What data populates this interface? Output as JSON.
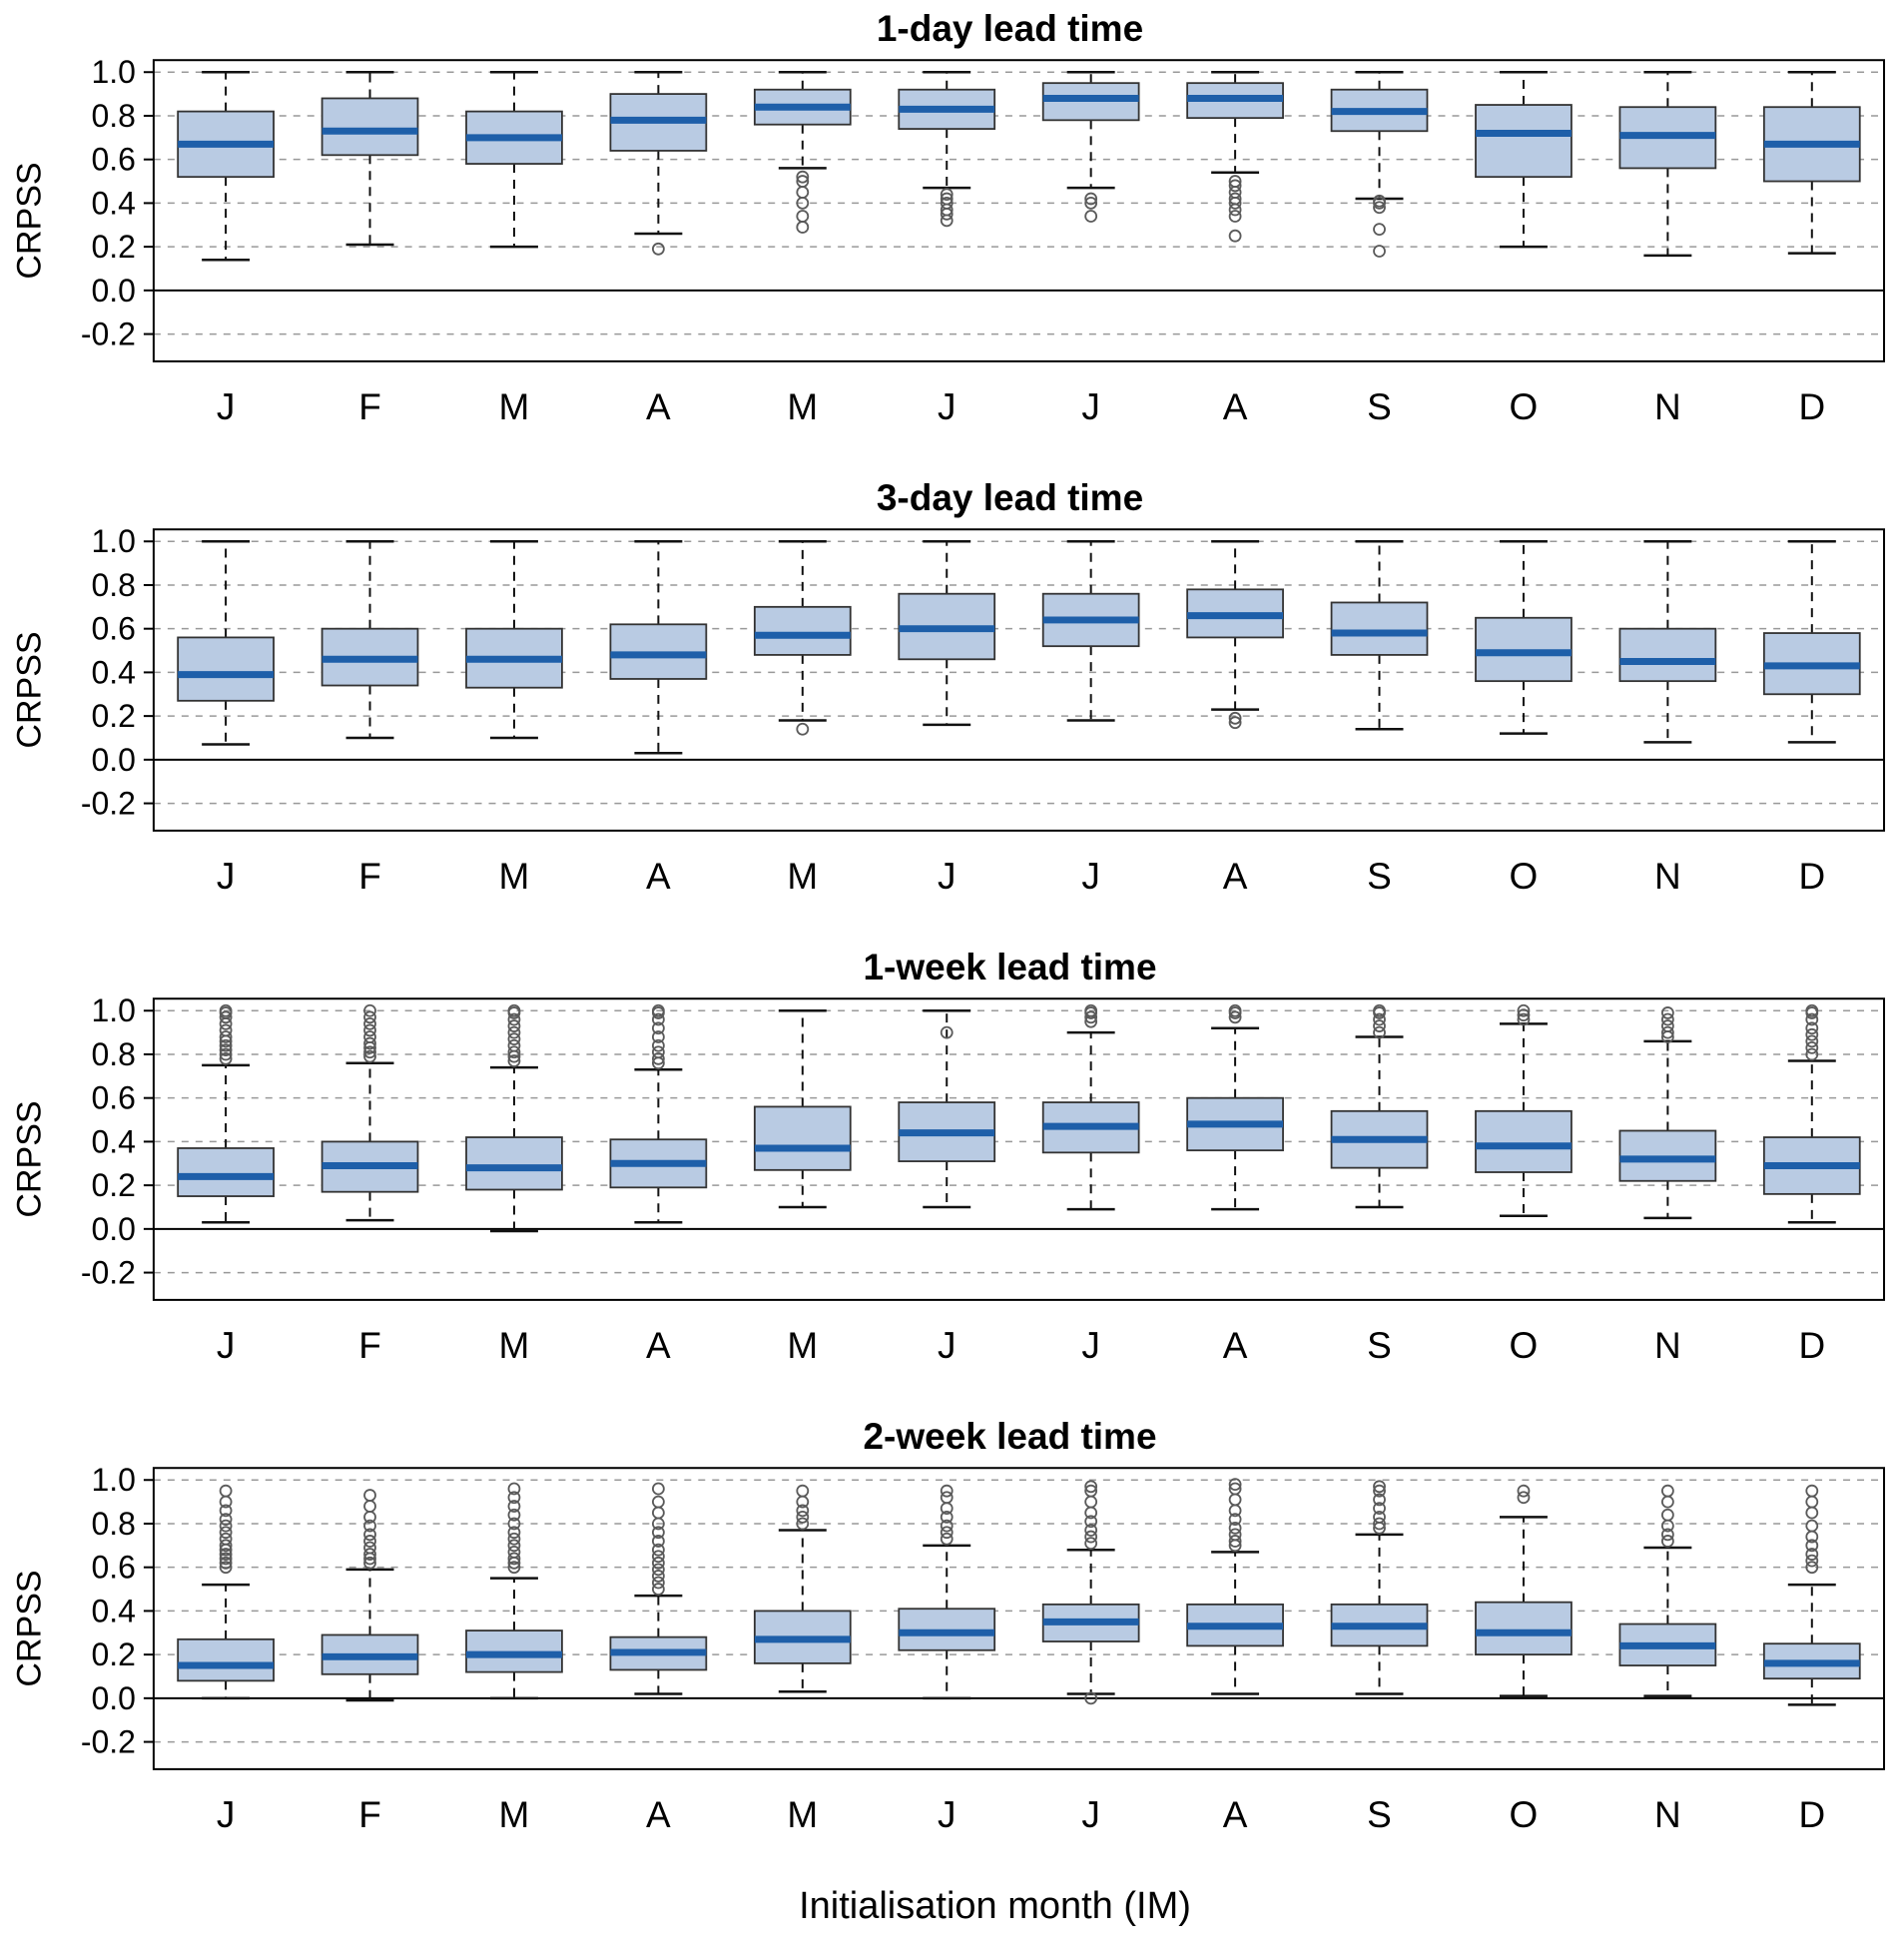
{
  "labels": {
    "x_axis": "Initialisation month (IM)"
  },
  "colors": {
    "box_fill": "#b9cbe3",
    "box_stroke": "#333333",
    "median": "#1e5fa9",
    "whisker": "#111111",
    "outlier": "#5a5a5a",
    "grid": "#999999",
    "zero_line": "#000000",
    "axis": "#000000"
  },
  "chart_data": [
    {
      "type": "boxplot",
      "title": "1-day lead time",
      "ylabel": "CRPSS",
      "ylim": [
        -0.325,
        1.055
      ],
      "yticks": [
        1.0,
        0.8,
        0.6,
        0.4,
        0.2,
        0.0,
        -0.2
      ],
      "grid": "dashed",
      "categories": [
        "J",
        "F",
        "M",
        "A",
        "M",
        "J",
        "J",
        "A",
        "S",
        "O",
        "N",
        "D"
      ],
      "boxes": [
        {
          "low": 0.14,
          "q1": 0.52,
          "median": 0.67,
          "q3": 0.82,
          "high": 1.0,
          "outliers": []
        },
        {
          "low": 0.21,
          "q1": 0.62,
          "median": 0.73,
          "q3": 0.88,
          "high": 1.0,
          "outliers": []
        },
        {
          "low": 0.2,
          "q1": 0.58,
          "median": 0.7,
          "q3": 0.82,
          "high": 1.0,
          "outliers": []
        },
        {
          "low": 0.26,
          "q1": 0.64,
          "median": 0.78,
          "q3": 0.9,
          "high": 1.0,
          "outliers": [
            0.19
          ]
        },
        {
          "low": 0.56,
          "q1": 0.76,
          "median": 0.84,
          "q3": 0.92,
          "high": 1.0,
          "outliers": [
            0.52,
            0.5,
            0.45,
            0.4,
            0.34,
            0.29
          ]
        },
        {
          "low": 0.47,
          "q1": 0.74,
          "median": 0.83,
          "q3": 0.92,
          "high": 1.0,
          "outliers": [
            0.44,
            0.42,
            0.4,
            0.37,
            0.35,
            0.32
          ]
        },
        {
          "low": 0.47,
          "q1": 0.78,
          "median": 0.88,
          "q3": 0.95,
          "high": 1.0,
          "outliers": [
            0.42,
            0.4,
            0.34
          ]
        },
        {
          "low": 0.54,
          "q1": 0.79,
          "median": 0.88,
          "q3": 0.95,
          "high": 1.0,
          "outliers": [
            0.5,
            0.48,
            0.45,
            0.42,
            0.4,
            0.37,
            0.34,
            0.25
          ]
        },
        {
          "low": 0.42,
          "q1": 0.73,
          "median": 0.82,
          "q3": 0.92,
          "high": 1.0,
          "outliers": [
            0.41,
            0.4,
            0.38,
            0.28,
            0.18
          ]
        },
        {
          "low": 0.2,
          "q1": 0.52,
          "median": 0.72,
          "q3": 0.85,
          "high": 1.0,
          "outliers": []
        },
        {
          "low": 0.16,
          "q1": 0.56,
          "median": 0.71,
          "q3": 0.84,
          "high": 1.0,
          "outliers": []
        },
        {
          "low": 0.17,
          "q1": 0.5,
          "median": 0.67,
          "q3": 0.84,
          "high": 1.0,
          "outliers": []
        }
      ]
    },
    {
      "type": "boxplot",
      "title": "3-day lead time",
      "ylabel": "CRPSS",
      "ylim": [
        -0.325,
        1.055
      ],
      "yticks": [
        1.0,
        0.8,
        0.6,
        0.4,
        0.2,
        0.0,
        -0.2
      ],
      "grid": "dashed",
      "categories": [
        "J",
        "F",
        "M",
        "A",
        "M",
        "J",
        "J",
        "A",
        "S",
        "O",
        "N",
        "D"
      ],
      "boxes": [
        {
          "low": 0.07,
          "q1": 0.27,
          "median": 0.39,
          "q3": 0.56,
          "high": 1.0,
          "outliers": []
        },
        {
          "low": 0.1,
          "q1": 0.34,
          "median": 0.46,
          "q3": 0.6,
          "high": 1.0,
          "outliers": []
        },
        {
          "low": 0.1,
          "q1": 0.33,
          "median": 0.46,
          "q3": 0.6,
          "high": 1.0,
          "outliers": []
        },
        {
          "low": 0.03,
          "q1": 0.37,
          "median": 0.48,
          "q3": 0.62,
          "high": 1.0,
          "outliers": []
        },
        {
          "low": 0.18,
          "q1": 0.48,
          "median": 0.57,
          "q3": 0.7,
          "high": 1.0,
          "outliers": [
            0.14
          ]
        },
        {
          "low": 0.16,
          "q1": 0.46,
          "median": 0.6,
          "q3": 0.76,
          "high": 1.0,
          "outliers": []
        },
        {
          "low": 0.18,
          "q1": 0.52,
          "median": 0.64,
          "q3": 0.76,
          "high": 1.0,
          "outliers": []
        },
        {
          "low": 0.23,
          "q1": 0.56,
          "median": 0.66,
          "q3": 0.78,
          "high": 1.0,
          "outliers": [
            0.19,
            0.17
          ]
        },
        {
          "low": 0.14,
          "q1": 0.48,
          "median": 0.58,
          "q3": 0.72,
          "high": 1.0,
          "outliers": []
        },
        {
          "low": 0.12,
          "q1": 0.36,
          "median": 0.49,
          "q3": 0.65,
          "high": 1.0,
          "outliers": []
        },
        {
          "low": 0.08,
          "q1": 0.36,
          "median": 0.45,
          "q3": 0.6,
          "high": 1.0,
          "outliers": []
        },
        {
          "low": 0.08,
          "q1": 0.3,
          "median": 0.43,
          "q3": 0.58,
          "high": 1.0,
          "outliers": []
        }
      ]
    },
    {
      "type": "boxplot",
      "title": "1-week lead time",
      "ylabel": "CRPSS",
      "ylim": [
        -0.325,
        1.055
      ],
      "yticks": [
        1.0,
        0.8,
        0.6,
        0.4,
        0.2,
        0.0,
        -0.2
      ],
      "grid": "dashed",
      "categories": [
        "J",
        "F",
        "M",
        "A",
        "M",
        "J",
        "J",
        "A",
        "S",
        "O",
        "N",
        "D"
      ],
      "boxes": [
        {
          "low": 0.03,
          "q1": 0.15,
          "median": 0.24,
          "q3": 0.37,
          "high": 0.75,
          "outliers": [
            0.78,
            0.8,
            0.82,
            0.84,
            0.86,
            0.88,
            0.91,
            0.94,
            0.97,
            0.99,
            1.0
          ]
        },
        {
          "low": 0.04,
          "q1": 0.17,
          "median": 0.29,
          "q3": 0.4,
          "high": 0.76,
          "outliers": [
            0.79,
            0.81,
            0.83,
            0.85,
            0.88,
            0.91,
            0.94,
            0.97,
            1.0
          ]
        },
        {
          "low": -0.01,
          "q1": 0.18,
          "median": 0.28,
          "q3": 0.42,
          "high": 0.74,
          "outliers": [
            0.77,
            0.79,
            0.81,
            0.84,
            0.87,
            0.9,
            0.93,
            0.96,
            0.99,
            1.0
          ]
        },
        {
          "low": 0.03,
          "q1": 0.19,
          "median": 0.3,
          "q3": 0.41,
          "high": 0.73,
          "outliers": [
            0.76,
            0.78,
            0.81,
            0.84,
            0.88,
            0.92,
            0.96,
            0.99,
            1.0
          ]
        },
        {
          "low": 0.1,
          "q1": 0.27,
          "median": 0.37,
          "q3": 0.56,
          "high": 1.0,
          "outliers": []
        },
        {
          "low": 0.1,
          "q1": 0.31,
          "median": 0.44,
          "q3": 0.58,
          "high": 1.0,
          "outliers": [
            0.9
          ]
        },
        {
          "low": 0.09,
          "q1": 0.35,
          "median": 0.47,
          "q3": 0.58,
          "high": 0.9,
          "outliers": [
            0.95,
            0.97,
            0.99,
            1.0
          ]
        },
        {
          "low": 0.09,
          "q1": 0.36,
          "median": 0.48,
          "q3": 0.6,
          "high": 0.92,
          "outliers": [
            0.97,
            0.99,
            1.0
          ]
        },
        {
          "low": 0.1,
          "q1": 0.28,
          "median": 0.41,
          "q3": 0.54,
          "high": 0.88,
          "outliers": [
            0.9,
            0.93,
            0.96,
            0.99,
            1.0
          ]
        },
        {
          "low": 0.06,
          "q1": 0.26,
          "median": 0.38,
          "q3": 0.54,
          "high": 0.94,
          "outliers": [
            0.96,
            0.98,
            1.0
          ]
        },
        {
          "low": 0.05,
          "q1": 0.22,
          "median": 0.32,
          "q3": 0.45,
          "high": 0.86,
          "outliers": [
            0.88,
            0.9,
            0.93,
            0.96,
            0.99
          ]
        },
        {
          "low": 0.03,
          "q1": 0.16,
          "median": 0.29,
          "q3": 0.42,
          "high": 0.77,
          "outliers": [
            0.8,
            0.83,
            0.86,
            0.89,
            0.92,
            0.96,
            0.99,
            1.0
          ]
        }
      ]
    },
    {
      "type": "boxplot",
      "title": "2-week lead time",
      "ylabel": "CRPSS",
      "ylim": [
        -0.325,
        1.055
      ],
      "yticks": [
        1.0,
        0.8,
        0.6,
        0.4,
        0.2,
        0.0,
        -0.2
      ],
      "grid": "dashed",
      "categories": [
        "J",
        "F",
        "M",
        "A",
        "M",
        "J",
        "J",
        "A",
        "S",
        "O",
        "N",
        "D"
      ],
      "boxes": [
        {
          "low": 0.0,
          "q1": 0.08,
          "median": 0.15,
          "q3": 0.27,
          "high": 0.52,
          "outliers": [
            0.6,
            0.62,
            0.64,
            0.66,
            0.68,
            0.7,
            0.73,
            0.76,
            0.79,
            0.82,
            0.86,
            0.9,
            0.95
          ]
        },
        {
          "low": -0.01,
          "q1": 0.11,
          "median": 0.19,
          "q3": 0.29,
          "high": 0.59,
          "outliers": [
            0.62,
            0.64,
            0.66,
            0.69,
            0.72,
            0.75,
            0.79,
            0.83,
            0.88,
            0.93
          ]
        },
        {
          "low": 0.0,
          "q1": 0.12,
          "median": 0.2,
          "q3": 0.31,
          "high": 0.55,
          "outliers": [
            0.6,
            0.62,
            0.64,
            0.67,
            0.7,
            0.73,
            0.76,
            0.8,
            0.84,
            0.88,
            0.92,
            0.96
          ]
        },
        {
          "low": 0.02,
          "q1": 0.13,
          "median": 0.21,
          "q3": 0.28,
          "high": 0.47,
          "outliers": [
            0.5,
            0.53,
            0.56,
            0.59,
            0.62,
            0.65,
            0.68,
            0.72,
            0.76,
            0.8,
            0.85,
            0.9,
            0.96
          ]
        },
        {
          "low": 0.03,
          "q1": 0.16,
          "median": 0.27,
          "q3": 0.4,
          "high": 0.77,
          "outliers": [
            0.8,
            0.83,
            0.86,
            0.9,
            0.95
          ]
        },
        {
          "low": 0.0,
          "q1": 0.22,
          "median": 0.3,
          "q3": 0.41,
          "high": 0.7,
          "outliers": [
            0.73,
            0.76,
            0.79,
            0.83,
            0.87,
            0.92,
            0.95
          ]
        },
        {
          "low": 0.02,
          "q1": 0.26,
          "median": 0.35,
          "q3": 0.43,
          "high": 0.68,
          "outliers": [
            0.0,
            0.71,
            0.74,
            0.77,
            0.81,
            0.85,
            0.9,
            0.95,
            0.97
          ]
        },
        {
          "low": 0.02,
          "q1": 0.24,
          "median": 0.33,
          "q3": 0.43,
          "high": 0.67,
          "outliers": [
            0.7,
            0.72,
            0.75,
            0.78,
            0.82,
            0.86,
            0.91,
            0.96,
            0.98
          ]
        },
        {
          "low": 0.02,
          "q1": 0.24,
          "median": 0.33,
          "q3": 0.43,
          "high": 0.75,
          "outliers": [
            0.78,
            0.8,
            0.83,
            0.87,
            0.91,
            0.95,
            0.97
          ]
        },
        {
          "low": 0.01,
          "q1": 0.2,
          "median": 0.3,
          "q3": 0.44,
          "high": 0.83,
          "outliers": [
            0.92,
            0.95
          ]
        },
        {
          "low": 0.01,
          "q1": 0.15,
          "median": 0.24,
          "q3": 0.34,
          "high": 0.69,
          "outliers": [
            0.72,
            0.75,
            0.79,
            0.84,
            0.9,
            0.95
          ]
        },
        {
          "low": -0.03,
          "q1": 0.09,
          "median": 0.16,
          "q3": 0.25,
          "high": 0.52,
          "outliers": [
            0.6,
            0.63,
            0.66,
            0.7,
            0.74,
            0.79,
            0.85,
            0.9,
            0.95
          ]
        }
      ]
    }
  ]
}
